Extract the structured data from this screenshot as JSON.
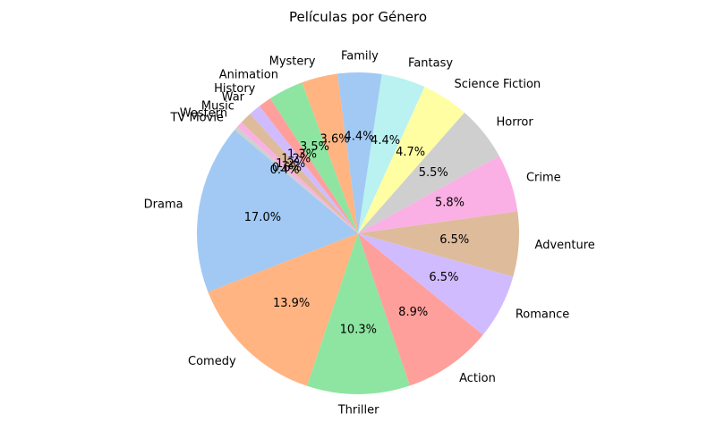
{
  "chart_data": {
    "type": "pie",
    "title": "Películas por Género",
    "start_angle": 140,
    "direction": "counterclockwise",
    "slices": [
      {
        "label": "Drama",
        "value": 17.0,
        "pct": "17.0%",
        "color": "#a1c9f4"
      },
      {
        "label": "Comedy",
        "value": 13.9,
        "pct": "13.9%",
        "color": "#ffb482"
      },
      {
        "label": "Thriller",
        "value": 10.3,
        "pct": "10.3%",
        "color": "#8de5a1"
      },
      {
        "label": "Action",
        "value": 8.9,
        "pct": "8.9%",
        "color": "#ff9f9b"
      },
      {
        "label": "Romance",
        "value": 6.5,
        "pct": "6.5%",
        "color": "#d0bbff"
      },
      {
        "label": "Adventure",
        "value": 6.5,
        "pct": "6.5%",
        "color": "#debb9b"
      },
      {
        "label": "Crime",
        "value": 5.8,
        "pct": "5.8%",
        "color": "#fab0e4"
      },
      {
        "label": "Horror",
        "value": 5.5,
        "pct": "5.5%",
        "color": "#cfcfcf"
      },
      {
        "label": "Science Fiction",
        "value": 4.7,
        "pct": "4.7%",
        "color": "#fffea3"
      },
      {
        "label": "Fantasy",
        "value": 4.4,
        "pct": "4.4%",
        "color": "#b9f2f0"
      },
      {
        "label": "Family",
        "value": 4.4,
        "pct": "4.4%",
        "color": "#a1c9f4"
      },
      {
        "label": "Mystery",
        "value": 3.6,
        "pct": "3.6%",
        "color": "#ffb482"
      },
      {
        "label": "Animation",
        "value": 3.5,
        "pct": "3.5%",
        "color": "#8de5a1"
      },
      {
        "label": "History",
        "value": 1.3,
        "pct": "1.3%",
        "color": "#ff9f9b"
      },
      {
        "label": "War",
        "value": 1.2,
        "pct": "1.2%",
        "color": "#d0bbff"
      },
      {
        "label": "Music",
        "value": 1.2,
        "pct": "1.2%",
        "color": "#debb9b"
      },
      {
        "label": "Western",
        "value": 0.6,
        "pct": "0.6%",
        "color": "#fab0e4"
      },
      {
        "label": "TV Movie",
        "value": 0.4,
        "pct": "0.4%",
        "color": "#cfcfcf"
      }
    ]
  }
}
